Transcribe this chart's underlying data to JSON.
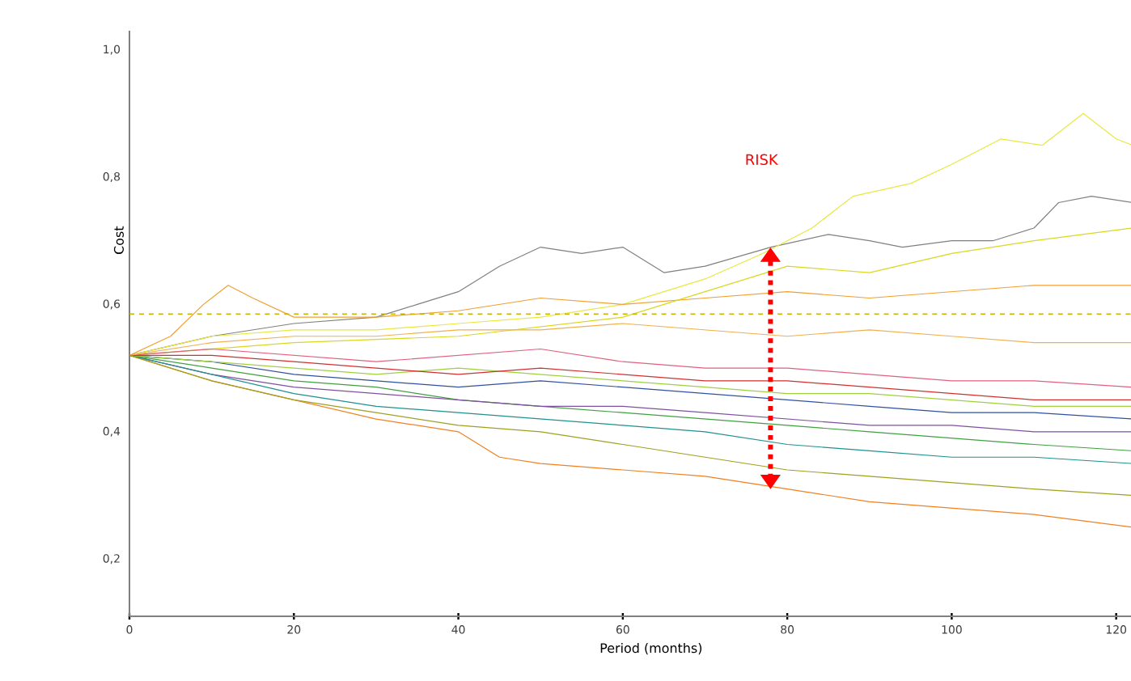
{
  "chart_data": {
    "type": "line",
    "xlabel": "Period (months)",
    "ylabel": "Cost",
    "xlim": [
      0,
      122
    ],
    "ylim": [
      0.11,
      1.03
    ],
    "xticks": [
      0,
      20,
      40,
      60,
      80,
      100,
      120
    ],
    "yticks": [
      {
        "value": 0.2,
        "label": "0,2"
      },
      {
        "value": 0.4,
        "label": "0,4"
      },
      {
        "value": 0.6,
        "label": "0,6"
      },
      {
        "value": 0.8,
        "label": "0,8"
      },
      {
        "value": 1.0,
        "label": "1,0"
      }
    ],
    "marker": "none",
    "line_style": "solid",
    "ref_lines": [
      {
        "axis": "y",
        "value": 0.585,
        "color": "#c8b400",
        "line_style": "dashed"
      }
    ],
    "annotations": [
      "RISK"
    ],
    "series": [
      {
        "color": "#808080",
        "x": [
          0,
          10,
          20,
          30,
          35,
          40,
          45,
          50,
          55,
          60,
          65,
          70,
          78,
          85,
          90,
          94,
          100,
          105,
          110,
          113,
          117,
          122
        ],
        "values": [
          0.52,
          0.55,
          0.57,
          0.58,
          0.6,
          0.62,
          0.66,
          0.69,
          0.68,
          0.69,
          0.65,
          0.66,
          0.69,
          0.71,
          0.7,
          0.69,
          0.7,
          0.7,
          0.72,
          0.76,
          0.77,
          0.76
        ]
      },
      {
        "color": "#e8e840",
        "x": [
          0,
          10,
          20,
          30,
          40,
          50,
          60,
          70,
          77,
          83,
          88,
          95,
          100,
          106,
          111,
          116,
          120,
          122
        ],
        "values": [
          0.52,
          0.55,
          0.56,
          0.56,
          0.57,
          0.58,
          0.6,
          0.64,
          0.68,
          0.72,
          0.77,
          0.79,
          0.82,
          0.86,
          0.85,
          0.9,
          0.86,
          0.85
        ]
      },
      {
        "color": "#f0a030",
        "x": [
          0,
          5,
          9,
          12,
          15,
          20,
          30,
          40,
          50,
          60,
          70,
          80,
          90,
          100,
          110,
          122
        ],
        "values": [
          0.52,
          0.55,
          0.6,
          0.63,
          0.61,
          0.58,
          0.58,
          0.59,
          0.61,
          0.6,
          0.61,
          0.62,
          0.61,
          0.62,
          0.63,
          0.63
        ]
      },
      {
        "color": "#f08020",
        "x": [
          0,
          10,
          20,
          30,
          40,
          45,
          50,
          60,
          70,
          80,
          90,
          100,
          110,
          122
        ],
        "values": [
          0.52,
          0.48,
          0.45,
          0.42,
          0.4,
          0.36,
          0.35,
          0.34,
          0.33,
          0.31,
          0.29,
          0.28,
          0.27,
          0.25
        ]
      },
      {
        "color": "#d8d820",
        "x": [
          0,
          20,
          40,
          60,
          70,
          80,
          90,
          100,
          110,
          122
        ],
        "values": [
          0.52,
          0.54,
          0.55,
          0.58,
          0.62,
          0.66,
          0.65,
          0.68,
          0.7,
          0.72
        ]
      },
      {
        "color": "#3050a0",
        "x": [
          0,
          10,
          20,
          30,
          40,
          50,
          60,
          70,
          80,
          90,
          100,
          110,
          122
        ],
        "values": [
          0.52,
          0.51,
          0.49,
          0.48,
          0.47,
          0.48,
          0.47,
          0.46,
          0.45,
          0.44,
          0.43,
          0.43,
          0.42
        ]
      },
      {
        "color": "#40a040",
        "x": [
          0,
          10,
          20,
          30,
          40,
          50,
          60,
          70,
          80,
          90,
          100,
          110,
          122
        ],
        "values": [
          0.52,
          0.5,
          0.48,
          0.47,
          0.45,
          0.44,
          0.43,
          0.42,
          0.41,
          0.4,
          0.39,
          0.38,
          0.37
        ]
      },
      {
        "color": "#e06080",
        "x": [
          0,
          10,
          20,
          30,
          40,
          50,
          60,
          70,
          80,
          90,
          100,
          110,
          122
        ],
        "values": [
          0.52,
          0.53,
          0.52,
          0.51,
          0.52,
          0.53,
          0.51,
          0.5,
          0.5,
          0.49,
          0.48,
          0.48,
          0.47
        ]
      },
      {
        "color": "#8050a0",
        "x": [
          0,
          10,
          20,
          30,
          40,
          50,
          60,
          70,
          80,
          90,
          100,
          110,
          122
        ],
        "values": [
          0.52,
          0.49,
          0.47,
          0.46,
          0.45,
          0.44,
          0.44,
          0.43,
          0.42,
          0.41,
          0.41,
          0.4,
          0.4
        ]
      },
      {
        "color": "#209090",
        "x": [
          0,
          10,
          20,
          30,
          40,
          50,
          60,
          70,
          80,
          90,
          100,
          110,
          122
        ],
        "values": [
          0.52,
          0.49,
          0.46,
          0.44,
          0.43,
          0.42,
          0.41,
          0.4,
          0.38,
          0.37,
          0.36,
          0.36,
          0.35
        ]
      },
      {
        "color": "#a0d040",
        "x": [
          0,
          10,
          20,
          30,
          40,
          50,
          60,
          70,
          80,
          90,
          100,
          110,
          122
        ],
        "values": [
          0.52,
          0.51,
          0.5,
          0.49,
          0.5,
          0.49,
          0.48,
          0.47,
          0.46,
          0.46,
          0.45,
          0.44,
          0.44
        ]
      },
      {
        "color": "#d03030",
        "x": [
          0,
          10,
          20,
          30,
          40,
          50,
          60,
          70,
          80,
          90,
          100,
          110,
          122
        ],
        "values": [
          0.52,
          0.52,
          0.51,
          0.5,
          0.49,
          0.5,
          0.49,
          0.48,
          0.48,
          0.47,
          0.46,
          0.45,
          0.45
        ]
      },
      {
        "color": "#f0b050",
        "x": [
          0,
          10,
          20,
          30,
          40,
          50,
          60,
          70,
          80,
          90,
          100,
          110,
          122
        ],
        "values": [
          0.52,
          0.54,
          0.55,
          0.55,
          0.56,
          0.56,
          0.57,
          0.56,
          0.55,
          0.56,
          0.55,
          0.54,
          0.54
        ]
      },
      {
        "color": "#a0a020",
        "x": [
          0,
          10,
          20,
          30,
          40,
          50,
          60,
          70,
          80,
          90,
          100,
          110,
          122
        ],
        "values": [
          0.52,
          0.48,
          0.45,
          0.43,
          0.41,
          0.4,
          0.38,
          0.36,
          0.34,
          0.33,
          0.32,
          0.31,
          0.3
        ]
      }
    ]
  }
}
